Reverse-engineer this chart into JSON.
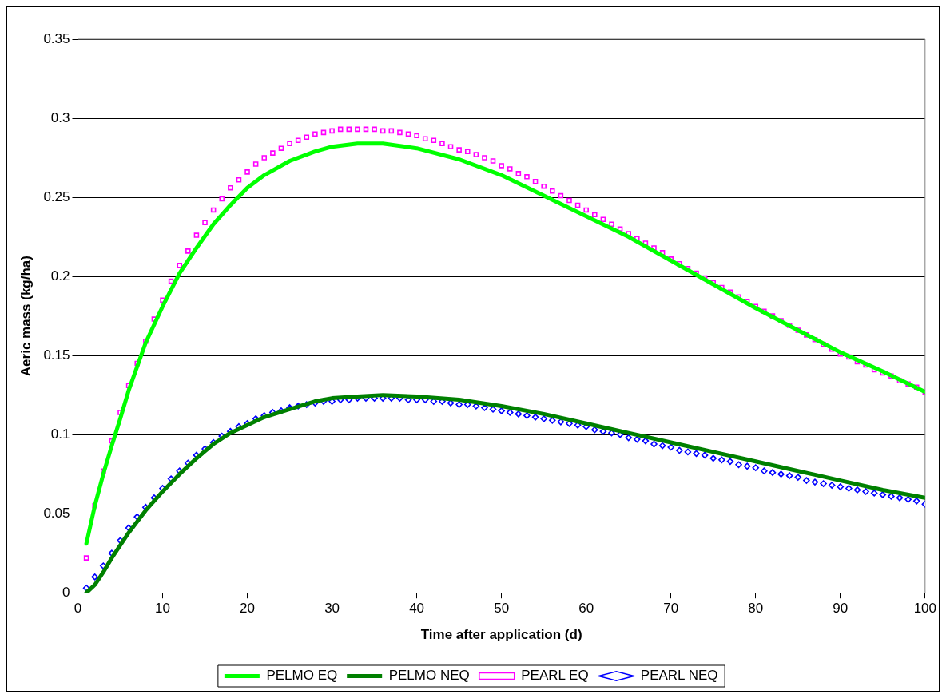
{
  "chart_data": {
    "type": "line",
    "xlabel": "Time after application (d)",
    "ylabel": "Aeric mass (kg/ha)",
    "xlim": [
      0,
      100
    ],
    "xticks": [
      0,
      10,
      20,
      30,
      40,
      50,
      60,
      70,
      80,
      90,
      100
    ],
    "ylim": [
      0,
      0.35
    ],
    "yticks": [
      0,
      0.05,
      0.1,
      0.15,
      0.2,
      0.25,
      0.3,
      0.35
    ],
    "grid": "y",
    "legend": "bottom",
    "series": [
      {
        "name": "PELMO EQ",
        "color": "#00ff00",
        "marker": "none",
        "x": [
          1,
          2,
          3,
          4,
          5,
          6,
          8,
          10,
          12,
          14,
          16,
          18,
          20,
          22,
          25,
          28,
          30,
          33,
          36,
          40,
          45,
          50,
          55,
          60,
          65,
          70,
          75,
          80,
          85,
          90,
          95,
          100
        ],
        "values": [
          0.031,
          0.055,
          0.075,
          0.093,
          0.11,
          0.128,
          0.158,
          0.181,
          0.202,
          0.218,
          0.233,
          0.245,
          0.256,
          0.264,
          0.273,
          0.279,
          0.282,
          0.284,
          0.284,
          0.281,
          0.274,
          0.264,
          0.251,
          0.238,
          0.225,
          0.21,
          0.195,
          0.18,
          0.166,
          0.152,
          0.14,
          0.127
        ]
      },
      {
        "name": "PELMO NEQ",
        "color": "#008000",
        "marker": "none",
        "x": [
          1,
          2,
          3,
          4,
          6,
          8,
          10,
          12,
          14,
          16,
          18,
          20,
          22,
          25,
          28,
          30,
          33,
          36,
          40,
          45,
          50,
          55,
          60,
          65,
          70,
          75,
          80,
          85,
          90,
          95,
          100
        ],
        "values": [
          0,
          0.005,
          0.013,
          0.022,
          0.038,
          0.052,
          0.064,
          0.075,
          0.085,
          0.094,
          0.101,
          0.106,
          0.111,
          0.116,
          0.121,
          0.123,
          0.124,
          0.125,
          0.124,
          0.122,
          0.118,
          0.113,
          0.107,
          0.101,
          0.095,
          0.089,
          0.083,
          0.077,
          0.071,
          0.065,
          0.06
        ]
      },
      {
        "name": "PEARL EQ",
        "type": "scatter",
        "color": "#ff00ff",
        "marker": "square",
        "x": [
          1,
          2,
          3,
          4,
          5,
          6,
          7,
          8,
          9,
          10,
          11,
          12,
          13,
          14,
          15,
          16,
          17,
          18,
          19,
          20,
          21,
          22,
          23,
          24,
          25,
          26,
          27,
          28,
          29,
          30,
          31,
          32,
          33,
          34,
          35,
          36,
          37,
          38,
          39,
          40,
          41,
          42,
          43,
          44,
          45,
          46,
          47,
          48,
          49,
          50,
          51,
          52,
          53,
          54,
          55,
          56,
          57,
          58,
          59,
          60,
          61,
          62,
          63,
          64,
          65,
          66,
          67,
          68,
          69,
          70,
          71,
          72,
          73,
          74,
          75,
          76,
          77,
          78,
          79,
          80,
          81,
          82,
          83,
          84,
          85,
          86,
          87,
          88,
          89,
          90,
          91,
          92,
          93,
          94,
          95,
          96,
          97,
          98,
          99,
          100
        ],
        "values": [
          0.022,
          0.055,
          0.077,
          0.096,
          0.114,
          0.131,
          0.145,
          0.159,
          0.173,
          0.185,
          0.197,
          0.207,
          0.216,
          0.226,
          0.234,
          0.242,
          0.249,
          0.256,
          0.261,
          0.266,
          0.271,
          0.275,
          0.278,
          0.281,
          0.284,
          0.286,
          0.288,
          0.29,
          0.291,
          0.292,
          0.293,
          0.293,
          0.293,
          0.293,
          0.293,
          0.292,
          0.292,
          0.291,
          0.29,
          0.289,
          0.287,
          0.286,
          0.284,
          0.282,
          0.28,
          0.279,
          0.277,
          0.275,
          0.273,
          0.27,
          0.268,
          0.265,
          0.263,
          0.26,
          0.257,
          0.254,
          0.251,
          0.248,
          0.245,
          0.242,
          0.239,
          0.236,
          0.233,
          0.23,
          0.227,
          0.224,
          0.221,
          0.218,
          0.215,
          0.211,
          0.208,
          0.205,
          0.202,
          0.199,
          0.196,
          0.193,
          0.19,
          0.187,
          0.184,
          0.181,
          0.178,
          0.175,
          0.172,
          0.169,
          0.166,
          0.163,
          0.16,
          0.157,
          0.154,
          0.151,
          0.149,
          0.146,
          0.144,
          0.141,
          0.139,
          0.137,
          0.134,
          0.132,
          0.13,
          0.127
        ]
      },
      {
        "name": "PEARL NEQ",
        "type": "scatter",
        "color": "#0000ff",
        "marker": "diamond",
        "x": [
          1,
          2,
          3,
          4,
          5,
          6,
          7,
          8,
          9,
          10,
          11,
          12,
          13,
          14,
          15,
          16,
          17,
          18,
          19,
          20,
          21,
          22,
          23,
          24,
          25,
          26,
          27,
          28,
          29,
          30,
          31,
          32,
          33,
          34,
          35,
          36,
          37,
          38,
          39,
          40,
          41,
          42,
          43,
          44,
          45,
          46,
          47,
          48,
          49,
          50,
          51,
          52,
          53,
          54,
          55,
          56,
          57,
          58,
          59,
          60,
          61,
          62,
          63,
          64,
          65,
          66,
          67,
          68,
          69,
          70,
          71,
          72,
          73,
          74,
          75,
          76,
          77,
          78,
          79,
          80,
          81,
          82,
          83,
          84,
          85,
          86,
          87,
          88,
          89,
          90,
          91,
          92,
          93,
          94,
          95,
          96,
          97,
          98,
          99,
          100
        ],
        "values": [
          0.003,
          0.01,
          0.017,
          0.025,
          0.033,
          0.041,
          0.048,
          0.054,
          0.06,
          0.066,
          0.072,
          0.077,
          0.082,
          0.087,
          0.091,
          0.095,
          0.099,
          0.102,
          0.105,
          0.107,
          0.11,
          0.112,
          0.114,
          0.115,
          0.117,
          0.118,
          0.119,
          0.12,
          0.121,
          0.121,
          0.122,
          0.122,
          0.123,
          0.123,
          0.123,
          0.123,
          0.123,
          0.123,
          0.122,
          0.122,
          0.122,
          0.121,
          0.121,
          0.12,
          0.119,
          0.119,
          0.118,
          0.117,
          0.116,
          0.115,
          0.114,
          0.113,
          0.112,
          0.111,
          0.11,
          0.109,
          0.108,
          0.107,
          0.106,
          0.105,
          0.103,
          0.102,
          0.101,
          0.1,
          0.098,
          0.097,
          0.096,
          0.094,
          0.093,
          0.092,
          0.09,
          0.089,
          0.088,
          0.087,
          0.085,
          0.084,
          0.083,
          0.081,
          0.08,
          0.079,
          0.077,
          0.076,
          0.075,
          0.074,
          0.073,
          0.071,
          0.07,
          0.069,
          0.068,
          0.067,
          0.066,
          0.065,
          0.064,
          0.063,
          0.062,
          0.061,
          0.06,
          0.059,
          0.058,
          0.056
        ]
      }
    ]
  }
}
